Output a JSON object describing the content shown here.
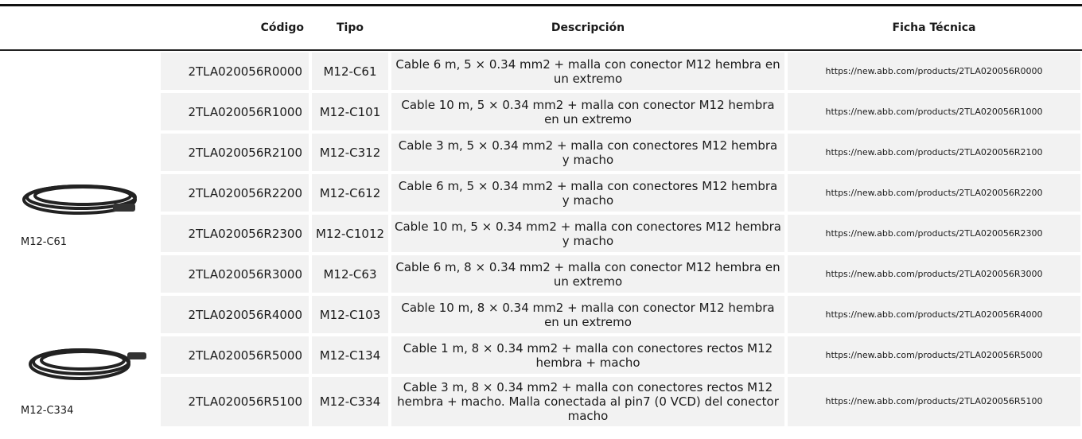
{
  "table": {
    "headers": [
      "Código",
      "Tipo",
      "Descripción",
      "Ficha Técnica"
    ],
    "rows": [
      [
        "2TLA020056R0000",
        "M12-C61",
        "Cable 6 m, 5 × 0.34 mm2 + malla con conector M12 hembra en un extremo",
        "https://new.abb.com/products/2TLA020056R0000"
      ],
      [
        "2TLA020056R1000",
        "M12-C101",
        "Cable 10 m, 5 × 0.34 mm2 + malla con conector M12 hembra en un extremo",
        "https://new.abb.com/products/2TLA020056R1000"
      ],
      [
        "2TLA020056R2100",
        "M12-C312",
        "Cable 3 m, 5 × 0.34 mm2 + malla con conectores M12 hembra y macho",
        "https://new.abb.com/products/2TLA020056R2100"
      ],
      [
        "2TLA020056R2200",
        "M12-C612",
        "Cable 6 m, 5 × 0.34 mm2 + malla con conectores M12 hembra y macho",
        "https://new.abb.com/products/2TLA020056R2200"
      ],
      [
        "2TLA020056R2300",
        "M12-C1012",
        "Cable 10 m, 5 × 0.34 mm2 + malla con conectores M12 hembra y macho",
        "https://new.abb.com/products/2TLA020056R2300"
      ],
      [
        "2TLA020056R3000",
        "M12-C63",
        "Cable 6 m, 8 × 0.34 mm2 + malla con conector M12 hembra en un extremo",
        "https://new.abb.com/products/2TLA020056R3000"
      ],
      [
        "2TLA020056R4000",
        "M12-C103",
        "Cable 10 m, 8 × 0.34 mm2 + malla con conector M12 hembra en un extremo",
        "https://new.abb.com/products/2TLA020056R4000"
      ],
      [
        "2TLA020056R5000",
        "M12-C134",
        "Cable 1 m, 8 × 0.34 mm2 + malla con conectores rectos M12 hembra + macho",
        "https://new.abb.com/products/2TLA020056R5000"
      ],
      [
        "2TLA020056R5100",
        "M12-C334",
        "Cable 3 m, 8 × 0.34 mm2 + malla con conectores rectos M12 hembra + macho. Malla conectada al pin7 (0 VCD) del conector macho",
        "https://new.abb.com/products/2TLA020056R5100"
      ]
    ],
    "image_captions": [
      "M12-C61",
      "M12-C334"
    ]
  }
}
